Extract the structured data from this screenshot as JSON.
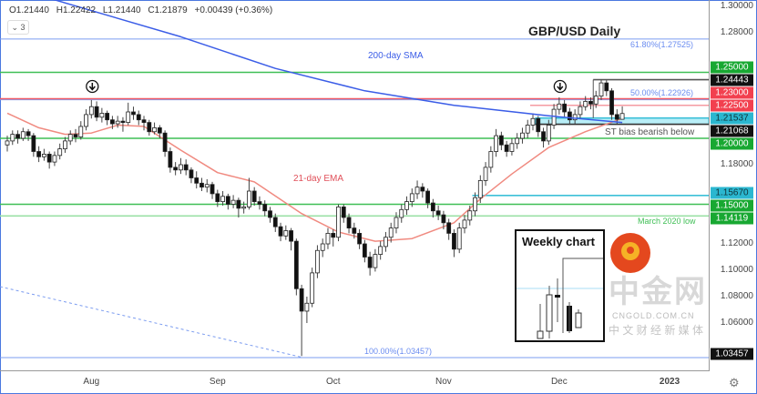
{
  "legend": {
    "open": "O1.21440",
    "high": "H1.22422",
    "low": "L1.21440",
    "close": "C1.21879",
    "change": "+0.00439 (+0.36%)",
    "indicator_toggle": "3"
  },
  "chart_data": {
    "type": "candlestick",
    "title": "GBP/USD Daily",
    "x_tick_labels": [
      {
        "label": "Aug",
        "index": 16
      },
      {
        "label": "Sep",
        "index": 40
      },
      {
        "label": "Oct",
        "index": 62
      },
      {
        "label": "Nov",
        "index": 83
      },
      {
        "label": "Dec",
        "index": 105
      },
      {
        "label": "2023",
        "index": 126
      }
    ],
    "y_range": [
      1.025,
      1.3
    ],
    "y_tick_labels": [
      "1.30000",
      "1.28000",
      "1.18000",
      "1.12000",
      "1.10000",
      "1.08000",
      "1.06000"
    ],
    "y_tick_values": [
      1.3,
      1.28,
      1.18,
      1.12,
      1.1,
      1.08,
      1.06
    ],
    "colors": {
      "bull_body": "#ffffff",
      "bear_body": "#111111",
      "wick": "#444444",
      "sma": "#3b5de7",
      "ema": "#f08a80"
    },
    "ohlc": [
      [
        1.195,
        1.202,
        1.19,
        1.198
      ],
      [
        1.198,
        1.206,
        1.195,
        1.203
      ],
      [
        1.203,
        1.206,
        1.196,
        1.2
      ],
      [
        1.2,
        1.208,
        1.198,
        1.205
      ],
      [
        1.205,
        1.207,
        1.198,
        1.202
      ],
      [
        1.202,
        1.204,
        1.186,
        1.19
      ],
      [
        1.19,
        1.194,
        1.182,
        1.186
      ],
      [
        1.186,
        1.192,
        1.183,
        1.188
      ],
      [
        1.188,
        1.19,
        1.177,
        1.182
      ],
      [
        1.182,
        1.19,
        1.179,
        1.187
      ],
      [
        1.187,
        1.196,
        1.184,
        1.192
      ],
      [
        1.192,
        1.201,
        1.189,
        1.198
      ],
      [
        1.198,
        1.206,
        1.195,
        1.203
      ],
      [
        1.203,
        1.207,
        1.197,
        1.201
      ],
      [
        1.201,
        1.213,
        1.199,
        1.209
      ],
      [
        1.209,
        1.222,
        1.206,
        1.218
      ],
      [
        1.218,
        1.229,
        1.215,
        1.224
      ],
      [
        1.224,
        1.228,
        1.213,
        1.216
      ],
      [
        1.216,
        1.223,
        1.212,
        1.219
      ],
      [
        1.219,
        1.221,
        1.21,
        1.214
      ],
      [
        1.214,
        1.217,
        1.207,
        1.211
      ],
      [
        1.211,
        1.217,
        1.208,
        1.213
      ],
      [
        1.213,
        1.216,
        1.205,
        1.212
      ],
      [
        1.212,
        1.227,
        1.21,
        1.22
      ],
      [
        1.22,
        1.224,
        1.214,
        1.218
      ],
      [
        1.218,
        1.221,
        1.21,
        1.214
      ],
      [
        1.214,
        1.217,
        1.206,
        1.212
      ],
      [
        1.212,
        1.214,
        1.202,
        1.205
      ],
      [
        1.205,
        1.212,
        1.203,
        1.208
      ],
      [
        1.208,
        1.21,
        1.2,
        1.204
      ],
      [
        1.204,
        1.206,
        1.186,
        1.19
      ],
      [
        1.19,
        1.193,
        1.174,
        1.178
      ],
      [
        1.178,
        1.182,
        1.172,
        1.176
      ],
      [
        1.176,
        1.185,
        1.173,
        1.18
      ],
      [
        1.18,
        1.184,
        1.172,
        1.176
      ],
      [
        1.176,
        1.178,
        1.166,
        1.17
      ],
      [
        1.17,
        1.175,
        1.162,
        1.166
      ],
      [
        1.166,
        1.17,
        1.16,
        1.163
      ],
      [
        1.163,
        1.169,
        1.159,
        1.165
      ],
      [
        1.165,
        1.167,
        1.154,
        1.158
      ],
      [
        1.158,
        1.161,
        1.148,
        1.152
      ],
      [
        1.152,
        1.16,
        1.149,
        1.156
      ],
      [
        1.156,
        1.158,
        1.146,
        1.15
      ],
      [
        1.15,
        1.157,
        1.147,
        1.153
      ],
      [
        1.153,
        1.155,
        1.14,
        1.147
      ],
      [
        1.147,
        1.152,
        1.143,
        1.148
      ],
      [
        1.148,
        1.17,
        1.146,
        1.16
      ],
      [
        1.16,
        1.163,
        1.149,
        1.152
      ],
      [
        1.152,
        1.156,
        1.146,
        1.15
      ],
      [
        1.15,
        1.153,
        1.141,
        1.145
      ],
      [
        1.145,
        1.148,
        1.136,
        1.14
      ],
      [
        1.14,
        1.143,
        1.129,
        1.133
      ],
      [
        1.133,
        1.136,
        1.122,
        1.126
      ],
      [
        1.126,
        1.134,
        1.123,
        1.13
      ],
      [
        1.13,
        1.132,
        1.115,
        1.122
      ],
      [
        1.122,
        1.124,
        1.081,
        1.086
      ],
      [
        1.086,
        1.089,
        1.035,
        1.069
      ],
      [
        1.069,
        1.08,
        1.06,
        1.075
      ],
      [
        1.075,
        1.102,
        1.072,
        1.098
      ],
      [
        1.098,
        1.119,
        1.094,
        1.115
      ],
      [
        1.115,
        1.124,
        1.11,
        1.12
      ],
      [
        1.12,
        1.132,
        1.116,
        1.128
      ],
      [
        1.128,
        1.131,
        1.118,
        1.125
      ],
      [
        1.125,
        1.15,
        1.122,
        1.148
      ],
      [
        1.148,
        1.15,
        1.136,
        1.14
      ],
      [
        1.14,
        1.143,
        1.128,
        1.132
      ],
      [
        1.132,
        1.136,
        1.124,
        1.128
      ],
      [
        1.128,
        1.131,
        1.116,
        1.12
      ],
      [
        1.12,
        1.123,
        1.106,
        1.11
      ],
      [
        1.11,
        1.114,
        1.096,
        1.102
      ],
      [
        1.102,
        1.116,
        1.099,
        1.112
      ],
      [
        1.112,
        1.122,
        1.108,
        1.118
      ],
      [
        1.118,
        1.129,
        1.114,
        1.125
      ],
      [
        1.125,
        1.136,
        1.121,
        1.132
      ],
      [
        1.132,
        1.144,
        1.128,
        1.14
      ],
      [
        1.14,
        1.15,
        1.136,
        1.146
      ],
      [
        1.146,
        1.156,
        1.142,
        1.152
      ],
      [
        1.152,
        1.162,
        1.148,
        1.158
      ],
      [
        1.158,
        1.168,
        1.154,
        1.163
      ],
      [
        1.163,
        1.166,
        1.155,
        1.16
      ],
      [
        1.16,
        1.162,
        1.147,
        1.151
      ],
      [
        1.151,
        1.154,
        1.14,
        1.145
      ],
      [
        1.145,
        1.149,
        1.138,
        1.142
      ],
      [
        1.142,
        1.145,
        1.131,
        1.136
      ],
      [
        1.136,
        1.139,
        1.123,
        1.128
      ],
      [
        1.128,
        1.131,
        1.11,
        1.116
      ],
      [
        1.116,
        1.136,
        1.113,
        1.132
      ],
      [
        1.132,
        1.142,
        1.128,
        1.138
      ],
      [
        1.138,
        1.149,
        1.134,
        1.145
      ],
      [
        1.145,
        1.159,
        1.141,
        1.155
      ],
      [
        1.155,
        1.172,
        1.151,
        1.168
      ],
      [
        1.168,
        1.182,
        1.164,
        1.178
      ],
      [
        1.178,
        1.194,
        1.174,
        1.19
      ],
      [
        1.19,
        1.207,
        1.186,
        1.202
      ],
      [
        1.202,
        1.205,
        1.191,
        1.195
      ],
      [
        1.195,
        1.198,
        1.186,
        1.19
      ],
      [
        1.19,
        1.2,
        1.187,
        1.196
      ],
      [
        1.196,
        1.204,
        1.192,
        1.2
      ],
      [
        1.2,
        1.208,
        1.196,
        1.204
      ],
      [
        1.204,
        1.214,
        1.2,
        1.21
      ],
      [
        1.21,
        1.219,
        1.206,
        1.215
      ],
      [
        1.215,
        1.217,
        1.201,
        1.205
      ],
      [
        1.205,
        1.208,
        1.193,
        1.198
      ],
      [
        1.198,
        1.214,
        1.195,
        1.21
      ],
      [
        1.21,
        1.226,
        1.207,
        1.222
      ],
      [
        1.222,
        1.231,
        1.218,
        1.226
      ],
      [
        1.226,
        1.229,
        1.216,
        1.22
      ],
      [
        1.22,
        1.223,
        1.21,
        1.214
      ],
      [
        1.214,
        1.222,
        1.211,
        1.218
      ],
      [
        1.218,
        1.228,
        1.215,
        1.224
      ],
      [
        1.224,
        1.232,
        1.221,
        1.228
      ],
      [
        1.228,
        1.231,
        1.222,
        1.226
      ],
      [
        1.226,
        1.236,
        1.223,
        1.232
      ],
      [
        1.232,
        1.2444,
        1.229,
        1.242
      ],
      [
        1.242,
        1.244,
        1.232,
        1.236
      ],
      [
        1.236,
        1.238,
        1.214,
        1.218
      ],
      [
        1.218,
        1.222,
        1.211,
        1.2144
      ],
      [
        1.2144,
        1.2242,
        1.2144,
        1.2188
      ]
    ],
    "sma200": {
      "label": "200-day SMA",
      "points": [
        [
          0,
          1.313
        ],
        [
          9,
          1.305
        ],
        [
          33,
          1.277
        ],
        [
          51,
          1.253
        ],
        [
          68,
          1.236
        ],
        [
          85,
          1.225
        ],
        [
          103,
          1.217
        ],
        [
          117,
          1.212
        ]
      ]
    },
    "ema21": {
      "label": "21-day EMA",
      "points": [
        [
          0,
          1.219
        ],
        [
          6,
          1.208
        ],
        [
          11,
          1.203
        ],
        [
          16,
          1.204
        ],
        [
          21,
          1.21
        ],
        [
          26,
          1.209
        ],
        [
          33,
          1.191
        ],
        [
          40,
          1.174
        ],
        [
          47,
          1.167
        ],
        [
          56,
          1.143
        ],
        [
          63,
          1.129
        ],
        [
          70,
          1.122
        ],
        [
          77,
          1.124
        ],
        [
          85,
          1.136
        ],
        [
          90,
          1.154
        ],
        [
          96,
          1.173
        ],
        [
          103,
          1.193
        ],
        [
          110,
          1.205
        ],
        [
          117,
          1.215
        ]
      ]
    },
    "levels": [
      {
        "price": 1.25,
        "tag": "1.25000",
        "color": "#3fbf55",
        "tag_bg": "#18a832",
        "tag_fg": "#ffffff",
        "from": 0
      },
      {
        "price": 1.24443,
        "tag": "1.24443",
        "color": "#555555",
        "tag_bg": "#111111",
        "tag_fg": "#ffffff",
        "from": 112
      },
      {
        "price": 1.23,
        "tag": "1.23000",
        "color": "#f05a66",
        "tag_bg": "#f2404f",
        "tag_fg": "#ffffff",
        "from": 0
      },
      {
        "price": 1.225,
        "tag": "1.22500",
        "color": "#f59aa2",
        "tag_bg": "#f2404f",
        "tag_fg": "#ffffff",
        "from": 100
      },
      {
        "price": 1.21537,
        "tag": "1.21537",
        "color": "#3cc0d8",
        "tag_bg": "#2bb7d0",
        "tag_fg": "#10333a",
        "from": 101
      },
      {
        "price": 1.21068,
        "tag": "1.21068",
        "color": "#333333",
        "tag_bg": "#111111",
        "tag_fg": "#ffffff",
        "from": 101
      },
      {
        "price": 1.2,
        "tag": "1.20000",
        "color": "#3fbf55",
        "tag_bg": "#18a832",
        "tag_fg": "#ffffff",
        "from": 0
      },
      {
        "price": 1.1567,
        "tag": "1.15670",
        "color": "#3cc0d8",
        "tag_bg": "#2bb7d0",
        "tag_fg": "#10333a",
        "from": 89
      },
      {
        "price": 1.15,
        "tag": "1.15000",
        "color": "#3fbf55",
        "tag_bg": "#18a832",
        "tag_fg": "#ffffff",
        "from": 0
      },
      {
        "price": 1.14119,
        "tag": "1.14119",
        "color": "#9be0a6",
        "tag_bg": "#18a832",
        "tag_fg": "#ffffff",
        "from": 0
      },
      {
        "price": 1.03457,
        "tag": "1.03457",
        "color": "#7b9cf0",
        "tag_bg": "#111111",
        "tag_fg": "#ffffff",
        "from": 0
      }
    ],
    "fib_levels": [
      {
        "price": 1.27525,
        "label": "61.80%(1.27525)"
      },
      {
        "price": 1.22926,
        "label": "50.00%(1.22926)"
      },
      {
        "price": 1.03457,
        "label": "100.00%(1.03457)"
      }
    ],
    "zone": {
      "low": 1.21068,
      "high": 1.21537,
      "from": 101,
      "fill": "#b8eef7"
    },
    "annotations": {
      "sma": "200-day SMA",
      "ema": "21-day EMA",
      "bias": "ST bias bearish below",
      "march_low": "March 2020 low",
      "weekly": "Weekly chart"
    },
    "peak_markers": [
      16,
      105
    ]
  },
  "watermark": {
    "brand": "中金网",
    "domain": "CNGOLD.COM.CN",
    "slogan": "中 文 财 经 新 媒 体"
  }
}
